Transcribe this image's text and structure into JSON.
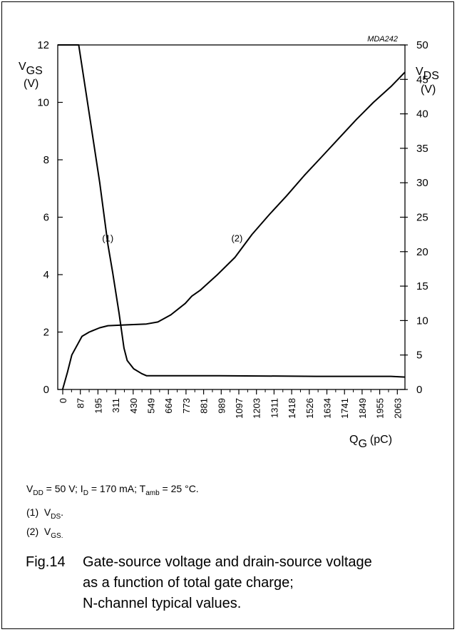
{
  "chart_data": {
    "type": "line",
    "code": "MDA242",
    "xlabel": {
      "main": "Q",
      "sub": "G",
      "unit": "(pC)"
    },
    "y_left_label": {
      "main": "V",
      "sub": "GS",
      "unit": "(V)"
    },
    "y_right_label": {
      "main": "V",
      "sub": "DS",
      "unit": "(V)"
    },
    "x_ticks": [
      "0",
      "87",
      "195",
      "311",
      "430",
      "549",
      "664",
      "773",
      "881",
      "989",
      "1097",
      "1203",
      "1311",
      "1418",
      "1526",
      "1634",
      "1741",
      "1849",
      "1955",
      "2063"
    ],
    "xlim": [
      0,
      2150
    ],
    "y_left_ticks": [
      0,
      2,
      4,
      6,
      8,
      10,
      12
    ],
    "y_left_lim": [
      0,
      12
    ],
    "y_right_ticks": [
      0,
      5,
      10,
      15,
      20,
      25,
      30,
      35,
      40,
      45,
      50
    ],
    "y_right_lim": [
      0,
      50
    ],
    "series": [
      {
        "name": "(1)",
        "axis": "right",
        "points": [
          [
            0,
            50
          ],
          [
            130,
            50
          ],
          [
            195,
            40
          ],
          [
            260,
            30
          ],
          [
            311,
            21
          ],
          [
            340,
            17
          ],
          [
            380,
            11
          ],
          [
            410,
            6
          ],
          [
            430,
            4.2
          ],
          [
            470,
            3
          ],
          [
            520,
            2.3
          ],
          [
            549,
            2
          ],
          [
            1000,
            2
          ],
          [
            1600,
            1.9
          ],
          [
            2063,
            1.9
          ],
          [
            2150,
            1.8
          ]
        ]
      },
      {
        "name": "(2)",
        "axis": "left",
        "points": [
          [
            30,
            0
          ],
          [
            60,
            0.6
          ],
          [
            87,
            1.2
          ],
          [
            150,
            1.85
          ],
          [
            195,
            2.0
          ],
          [
            260,
            2.15
          ],
          [
            311,
            2.22
          ],
          [
            430,
            2.25
          ],
          [
            549,
            2.28
          ],
          [
            620,
            2.35
          ],
          [
            700,
            2.6
          ],
          [
            790,
            3.0
          ],
          [
            830,
            3.25
          ],
          [
            881,
            3.45
          ],
          [
            989,
            4.0
          ],
          [
            1097,
            4.6
          ],
          [
            1203,
            5.4
          ],
          [
            1311,
            6.1
          ],
          [
            1418,
            6.75
          ],
          [
            1526,
            7.45
          ],
          [
            1634,
            8.1
          ],
          [
            1741,
            8.75
          ],
          [
            1849,
            9.4
          ],
          [
            1955,
            10.0
          ],
          [
            2063,
            10.55
          ],
          [
            2150,
            11.05
          ]
        ]
      }
    ],
    "annotations": [
      {
        "text": "(1)",
        "x": 310,
        "y": 5.25,
        "axis": "left"
      },
      {
        "text": "(2)",
        "x": 1110,
        "y": 5.25,
        "axis": "left"
      }
    ]
  },
  "notes": {
    "conditions": {
      "a": "V",
      "a_sub": "DD",
      "b": " = 50 V; I",
      "b_sub": "D",
      "c": " = 170 mA; T",
      "c_sub": "amb",
      "d": " = 25 °C."
    },
    "legend": [
      {
        "num": "(1)",
        "main": "V",
        "sub": "DS",
        "end": "."
      },
      {
        "num": "(2)",
        "main": "V",
        "sub": "GS.",
        "end": ""
      }
    ]
  },
  "caption": {
    "fig": "Fig.14",
    "lines": [
      "Gate-source voltage and drain-source voltage",
      "as a function of total gate charge;",
      "N-channel typical values."
    ]
  }
}
